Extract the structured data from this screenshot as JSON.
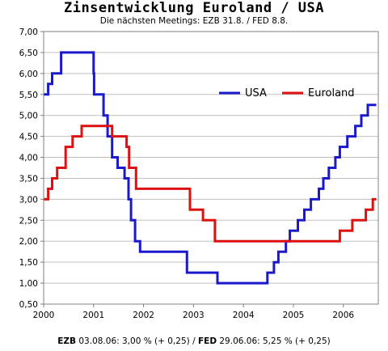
{
  "title": "Zinsentwicklung Euroland / USA",
  "subtitle": "Die nächsten Meetings: EZB 31.8. / FED 8.8.",
  "footer": {
    "ezb_label": "EZB",
    "ezb_text": " 03.08.06: 3,00 % (+ 0,25) / ",
    "fed_label": "FED",
    "fed_text": " 29.06.06: 5,25 % (+ 0,25)"
  },
  "colors": {
    "usa": "#1a1acc",
    "euroland": "#dd1111",
    "grid": "#c0c0c0",
    "axis": "#808080"
  },
  "chart_data": {
    "type": "line",
    "step": true,
    "xlim": [
      2000,
      2006.7
    ],
    "ylim": [
      0.5,
      7.0
    ],
    "x_ticks": [
      2000,
      2001,
      2002,
      2003,
      2004,
      2005,
      2006
    ],
    "x_tick_labels": [
      "2000",
      "2001",
      "2002",
      "2003",
      "2004",
      "2005",
      "2006"
    ],
    "y_ticks": [
      0.5,
      1.0,
      1.5,
      2.0,
      2.5,
      3.0,
      3.5,
      4.0,
      4.5,
      5.0,
      5.5,
      6.0,
      6.5,
      7.0
    ],
    "y_tick_labels": [
      "0,50",
      "1,00",
      "1,50",
      "2,00",
      "2,50",
      "3,00",
      "3,50",
      "4,00",
      "4,50",
      "5,00",
      "5,50",
      "6,00",
      "6,50",
      "7,00"
    ],
    "grid": true,
    "legend_position": "top-right",
    "series": [
      {
        "name": "USA",
        "color": "#1a1acc",
        "points": [
          [
            2000.0,
            5.5
          ],
          [
            2000.09,
            5.75
          ],
          [
            2000.17,
            6.0
          ],
          [
            2000.35,
            6.5
          ],
          [
            2001.0,
            6.0
          ],
          [
            2001.01,
            5.5
          ],
          [
            2001.09,
            5.5
          ],
          [
            2001.2,
            5.0
          ],
          [
            2001.28,
            4.5
          ],
          [
            2001.37,
            4.0
          ],
          [
            2001.48,
            3.75
          ],
          [
            2001.62,
            3.5
          ],
          [
            2001.7,
            3.0
          ],
          [
            2001.75,
            2.5
          ],
          [
            2001.83,
            2.0
          ],
          [
            2001.93,
            1.75
          ],
          [
            2002.87,
            1.25
          ],
          [
            2003.48,
            1.0
          ],
          [
            2004.48,
            1.25
          ],
          [
            2004.61,
            1.5
          ],
          [
            2004.7,
            1.75
          ],
          [
            2004.85,
            2.0
          ],
          [
            2004.93,
            2.25
          ],
          [
            2005.09,
            2.5
          ],
          [
            2005.22,
            2.75
          ],
          [
            2005.35,
            3.0
          ],
          [
            2005.51,
            3.25
          ],
          [
            2005.6,
            3.5
          ],
          [
            2005.71,
            3.75
          ],
          [
            2005.84,
            4.0
          ],
          [
            2005.93,
            4.25
          ],
          [
            2006.08,
            4.5
          ],
          [
            2006.24,
            4.75
          ],
          [
            2006.36,
            5.0
          ],
          [
            2006.49,
            5.25
          ],
          [
            2006.66,
            5.25
          ]
        ]
      },
      {
        "name": "Euroland",
        "color": "#dd1111",
        "points": [
          [
            2000.0,
            3.0
          ],
          [
            2000.09,
            3.25
          ],
          [
            2000.17,
            3.5
          ],
          [
            2000.27,
            3.75
          ],
          [
            2000.44,
            4.25
          ],
          [
            2000.58,
            4.5
          ],
          [
            2000.76,
            4.75
          ],
          [
            2001.37,
            4.5
          ],
          [
            2001.66,
            4.25
          ],
          [
            2001.71,
            3.75
          ],
          [
            2001.85,
            3.25
          ],
          [
            2002.93,
            2.75
          ],
          [
            2003.19,
            2.5
          ],
          [
            2003.43,
            2.0
          ],
          [
            2005.93,
            2.25
          ],
          [
            2006.18,
            2.5
          ],
          [
            2006.45,
            2.75
          ],
          [
            2006.59,
            3.0
          ],
          [
            2006.66,
            3.0
          ]
        ]
      }
    ]
  }
}
